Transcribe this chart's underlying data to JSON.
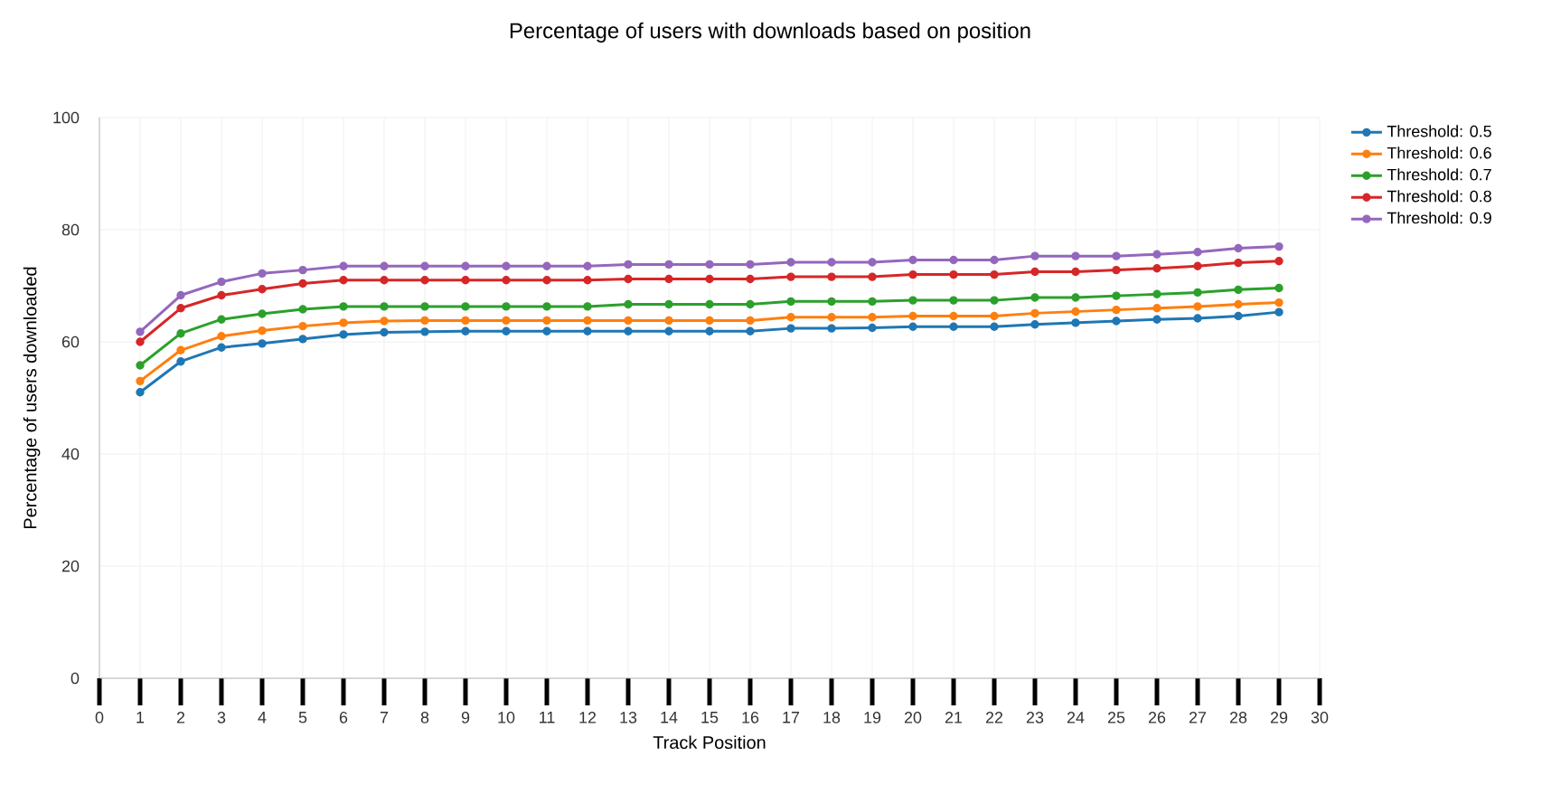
{
  "chart_data": {
    "type": "line",
    "title": "Percentage of users with downloads based on position",
    "xlabel": "Track Position",
    "ylabel": "Percentage of users downloaded",
    "x": [
      1,
      2,
      3,
      4,
      5,
      6,
      7,
      8,
      9,
      10,
      11,
      12,
      13,
      14,
      15,
      16,
      17,
      18,
      19,
      20,
      21,
      22,
      23,
      24,
      25,
      26,
      27,
      28,
      29
    ],
    "series": [
      {
        "name": "Threshold: 0.5",
        "color": "#1f77b4",
        "values": [
          51,
          56.5,
          59,
          59.7,
          60.5,
          61.3,
          61.7,
          61.8,
          61.9,
          61.9,
          61.9,
          61.9,
          61.9,
          61.9,
          61.9,
          61.9,
          62.4,
          62.4,
          62.5,
          62.7,
          62.7,
          62.7,
          63.1,
          63.4,
          63.7,
          64,
          64.2,
          64.6,
          65.3
        ]
      },
      {
        "name": "Threshold: 0.6",
        "color": "#ff7f0e",
        "values": [
          53,
          58.5,
          61,
          62,
          62.8,
          63.4,
          63.7,
          63.8,
          63.8,
          63.8,
          63.8,
          63.8,
          63.8,
          63.8,
          63.8,
          63.8,
          64.4,
          64.4,
          64.4,
          64.6,
          64.6,
          64.6,
          65.1,
          65.4,
          65.7,
          66,
          66.3,
          66.7,
          67
        ]
      },
      {
        "name": "Threshold: 0.7",
        "color": "#2ca02c",
        "values": [
          55.8,
          61.5,
          64,
          65,
          65.8,
          66.3,
          66.3,
          66.3,
          66.3,
          66.3,
          66.3,
          66.3,
          66.7,
          66.7,
          66.7,
          66.7,
          67.2,
          67.2,
          67.2,
          67.4,
          67.4,
          67.4,
          67.9,
          67.9,
          68.2,
          68.5,
          68.8,
          69.3,
          69.6
        ]
      },
      {
        "name": "Threshold: 0.8",
        "color": "#d62728",
        "values": [
          60,
          66,
          68.3,
          69.4,
          70.4,
          71,
          71,
          71,
          71,
          71,
          71,
          71,
          71.2,
          71.2,
          71.2,
          71.2,
          71.6,
          71.6,
          71.6,
          72,
          72,
          72,
          72.5,
          72.5,
          72.8,
          73.1,
          73.5,
          74.1,
          74.4
        ]
      },
      {
        "name": "Threshold: 0.9",
        "color": "#9467bd",
        "values": [
          61.8,
          68.3,
          70.7,
          72.2,
          72.8,
          73.5,
          73.5,
          73.5,
          73.5,
          73.5,
          73.5,
          73.5,
          73.8,
          73.8,
          73.8,
          73.8,
          74.2,
          74.2,
          74.2,
          74.6,
          74.6,
          74.6,
          75.3,
          75.3,
          75.3,
          75.6,
          76,
          76.7,
          77
        ]
      }
    ],
    "xlim": [
      0,
      30
    ],
    "xticks": [
      0,
      1,
      2,
      3,
      4,
      5,
      6,
      7,
      8,
      9,
      10,
      11,
      12,
      13,
      14,
      15,
      16,
      17,
      18,
      19,
      20,
      21,
      22,
      23,
      24,
      25,
      26,
      27,
      28,
      29,
      30
    ],
    "ylim": [
      0,
      100
    ],
    "yticks": [
      0,
      20,
      40,
      60,
      80,
      100
    ],
    "grid": true,
    "legend": "top right",
    "marker": "circle",
    "line_style": "solid"
  }
}
